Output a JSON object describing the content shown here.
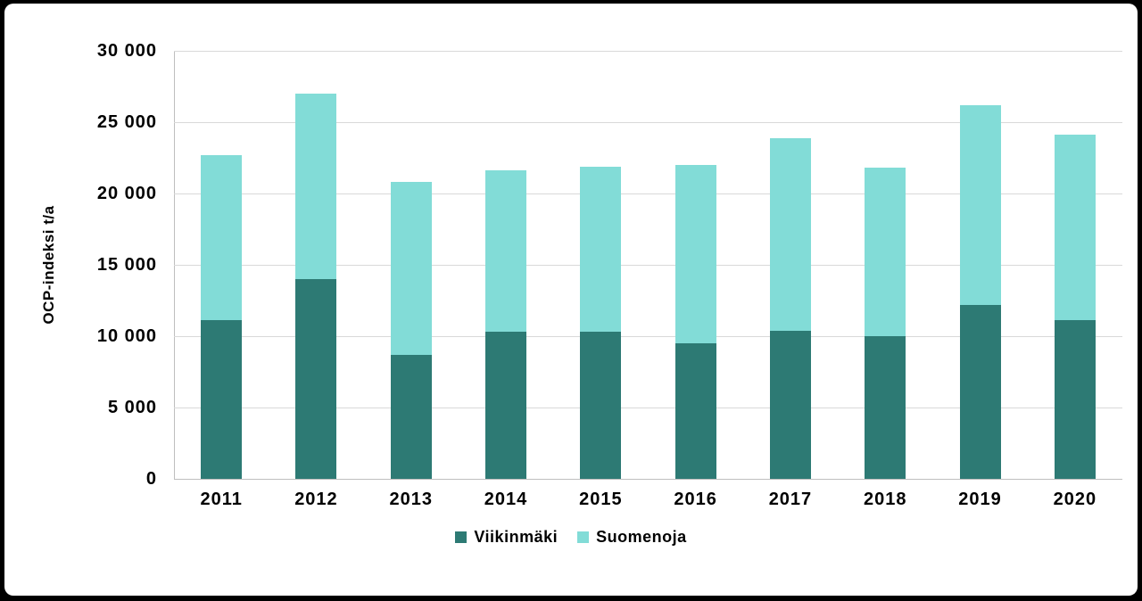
{
  "frame": {
    "background_color": "#000000",
    "card_background_color": "#FFFFFF"
  },
  "chart_data": {
    "type": "bar",
    "stacked": true,
    "title": "",
    "xlabel": "",
    "ylabel": "OCP-indeksi t/a",
    "categories": [
      "2011",
      "2012",
      "2013",
      "2014",
      "2015",
      "2016",
      "2017",
      "2018",
      "2019",
      "2020"
    ],
    "series": [
      {
        "name": "Viikinmäki",
        "color": "#2D7A74",
        "values": [
          11100,
          14000,
          8700,
          10300,
          10300,
          9500,
          10400,
          10000,
          12200,
          11100
        ]
      },
      {
        "name": "Suomenoja",
        "color": "#82DCD7",
        "values": [
          11600,
          13000,
          12100,
          11300,
          11600,
          12500,
          13500,
          11800,
          14000,
          13000
        ]
      }
    ],
    "stacked_totals": [
      22700,
      27000,
      20800,
      21600,
      21900,
      22000,
      23900,
      21800,
      26200,
      24100
    ],
    "ylim": [
      0,
      30000
    ],
    "y_ticks": [
      {
        "value": 0,
        "label": "0"
      },
      {
        "value": 5000,
        "label": "5 000"
      },
      {
        "value": 10000,
        "label": "10 000"
      },
      {
        "value": 15000,
        "label": "15 000"
      },
      {
        "value": 20000,
        "label": "20 000"
      },
      {
        "value": 25000,
        "label": "25 000"
      },
      {
        "value": 30000,
        "label": "30 000"
      }
    ],
    "grid": true,
    "gridline_color": "#D9D9D9",
    "axis_line_color": "#BFBFBF",
    "text_color": "#000000",
    "legend_position": "bottom"
  }
}
